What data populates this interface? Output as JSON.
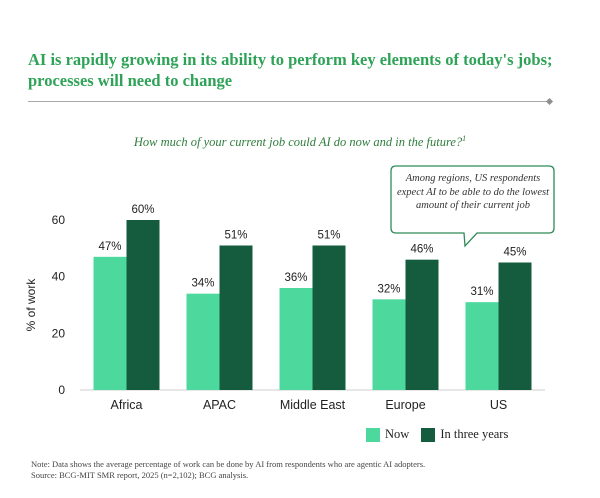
{
  "slide": {
    "title": "AI is rapidly growing in its ability to perform key elements of today's jobs; processes will need to change",
    "question": "How much of your current job could AI do now and in the future?",
    "question_footnote_mark": "1",
    "callout": "Among regions, US respondents expect AI to be able to do the lowest amount of their current job",
    "note": "Note: Data shows the average percentage of work can be done by AI from respondents who are agentic AI adopters.",
    "source": "Source: BCG-MIT SMR report, 2025 (n=2,102); BCG analysis."
  },
  "colors": {
    "now": "#4dd99e",
    "future": "#155b3d",
    "title": "#2ea357",
    "question": "#2f7d3c",
    "callout_border": "#2e8b57"
  },
  "chart_data": {
    "type": "bar",
    "title": "How much of your current job could AI do now and in the future?",
    "xlabel": "",
    "ylabel": "% of work",
    "ylim": [
      0,
      65
    ],
    "yticks": [
      0,
      20,
      40,
      60
    ],
    "categories": [
      "Africa",
      "APAC",
      "Middle East",
      "Europe",
      "US"
    ],
    "series": [
      {
        "name": "Now",
        "values": [
          47,
          34,
          36,
          32,
          31
        ],
        "labels": [
          "47%",
          "34%",
          "36%",
          "32%",
          "31%"
        ]
      },
      {
        "name": "In three years",
        "values": [
          60,
          51,
          51,
          46,
          45
        ],
        "labels": [
          "60%",
          "51%",
          "51%",
          "46%",
          "45%"
        ]
      }
    ],
    "legend_position": "bottom-right",
    "grid": false
  }
}
